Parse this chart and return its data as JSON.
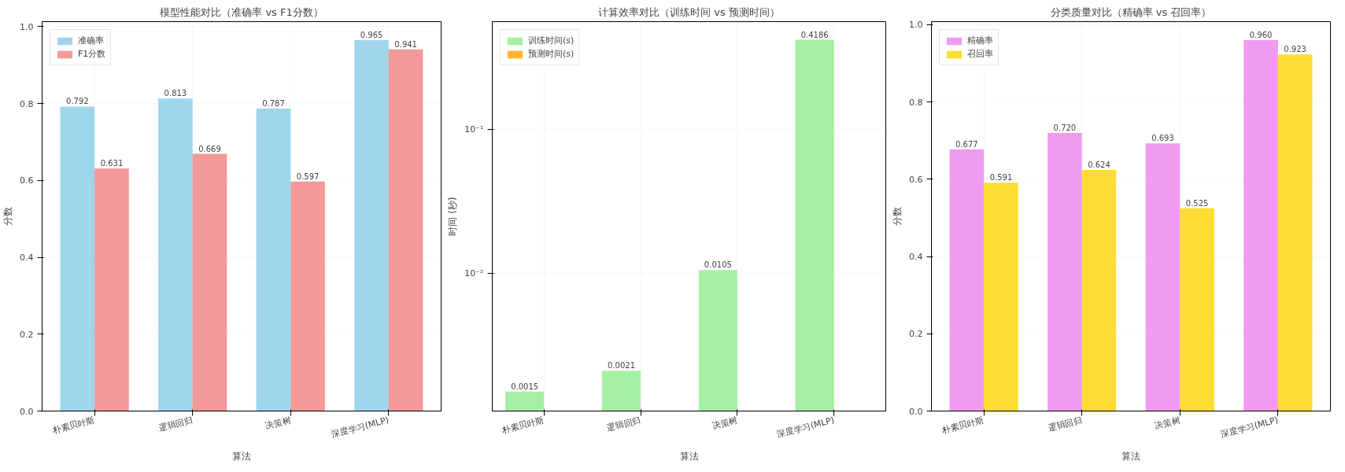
{
  "chart_data": [
    {
      "type": "bar",
      "title": "模型性能对比（准确率 vs F1分数）",
      "xlabel": "算法",
      "ylabel": "分数",
      "categories": [
        "朴素贝叶斯",
        "逻辑回归",
        "决策树",
        "深度学习(MLP)"
      ],
      "series": [
        {
          "name": "准确率",
          "color": "#a0d6ec",
          "values": [
            0.792,
            0.813,
            0.787,
            0.965
          ],
          "value_labels": [
            "0.792",
            "0.813",
            "0.787",
            "0.965"
          ]
        },
        {
          "name": "F1分数",
          "color": "#f29a99",
          "values": [
            0.631,
            0.669,
            0.597,
            0.941
          ],
          "value_labels": [
            "0.631",
            "0.669",
            "0.597",
            "0.941"
          ]
        }
      ],
      "ylim": [
        0,
        1.013
      ],
      "yticks": [
        {
          "value": 0,
          "label": "0.0"
        },
        {
          "value": 0.2,
          "label": "0.2"
        },
        {
          "value": 0.4,
          "label": "0.4"
        },
        {
          "value": 0.6,
          "label": "0.6"
        },
        {
          "value": 0.8,
          "label": "0.8"
        },
        {
          "value": 1.0,
          "label": "1.0"
        }
      ],
      "grid": true,
      "legend": "top left"
    },
    {
      "type": "bar",
      "title": "计算效率对比（训练时间 vs 预测时间）",
      "xlabel": "算法",
      "ylabel": "时间 (秒)",
      "categories": [
        "朴素贝叶斯",
        "逻辑回归",
        "决策树",
        "深度学习(MLP)"
      ],
      "series": [
        {
          "name": "训练时间(s)",
          "color": "#a6f0a6",
          "values": [
            0.0015,
            0.0021,
            0.0105,
            0.4186
          ],
          "value_labels": [
            "0.0015",
            "0.0021",
            "0.0105",
            "0.4186"
          ]
        },
        {
          "name": "预测时间(s)",
          "color": "#fbb631",
          "values": [
            null,
            null,
            null,
            null
          ]
        }
      ],
      "log": "y",
      "ylim": [
        0.0011,
        0.56
      ],
      "yticks": [
        {
          "value": 0.01,
          "label": "10⁻²"
        },
        {
          "value": 0.1,
          "label": "10⁻¹"
        }
      ],
      "grid": true,
      "legend": "top left"
    },
    {
      "type": "bar",
      "title": "分类质量对比（精确率 vs 召回率）",
      "xlabel": "算法",
      "ylabel": "分数",
      "categories": [
        "朴素贝叶斯",
        "逻辑回归",
        "决策树",
        "深度学习(MLP)"
      ],
      "series": [
        {
          "name": "精确率",
          "color": "#f09bef",
          "values": [
            0.677,
            0.72,
            0.693,
            0.96
          ],
          "value_labels": [
            "0.677",
            "0.720",
            "0.693",
            "0.960"
          ]
        },
        {
          "name": "召回率",
          "color": "#fedd32",
          "values": [
            0.591,
            0.624,
            0.525,
            0.923
          ],
          "value_labels": [
            "0.591",
            "0.624",
            "0.525",
            "0.923"
          ]
        }
      ],
      "ylim": [
        0,
        1.008
      ],
      "yticks": [
        {
          "value": 0,
          "label": "0.0"
        },
        {
          "value": 0.2,
          "label": "0.2"
        },
        {
          "value": 0.4,
          "label": "0.4"
        },
        {
          "value": 0.6,
          "label": "0.6"
        },
        {
          "value": 0.8,
          "label": "0.8"
        },
        {
          "value": 1.0,
          "label": "1.0"
        }
      ],
      "grid": true,
      "legend": "top left"
    }
  ]
}
